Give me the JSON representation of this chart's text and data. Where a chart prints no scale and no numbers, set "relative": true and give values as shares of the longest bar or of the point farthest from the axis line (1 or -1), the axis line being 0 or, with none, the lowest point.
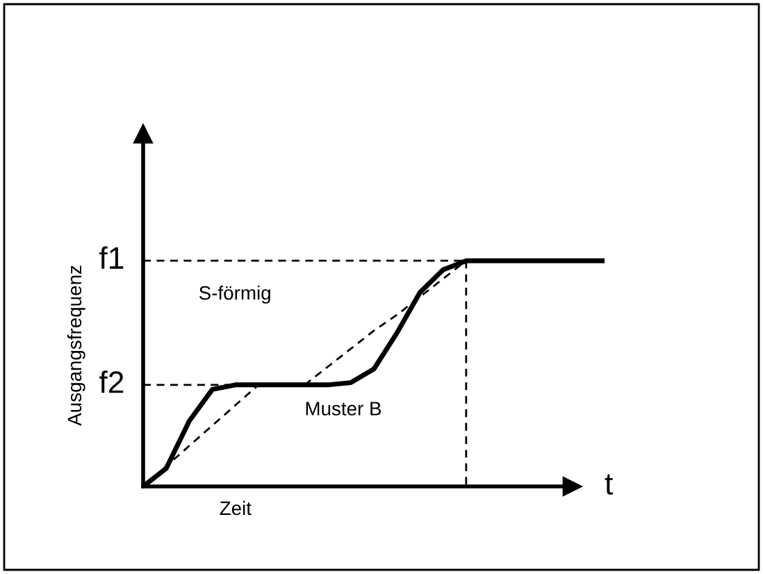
{
  "chart_data": {
    "type": "line",
    "relative": true,
    "xlabel": "Zeit",
    "ylabel": "Ausgangsfrequenz",
    "categories": [
      null,
      null,
      null,
      null,
      null,
      null,
      null,
      null,
      null,
      null,
      null,
      null,
      null,
      null,
      null,
      null,
      null,
      null,
      null,
      null,
      null
    ],
    "series": [
      {
        "color": "#000000",
        "values": [
          0,
          0.08,
          0.29,
          0.43,
          0.45,
          0.45,
          0.45,
          0.45,
          0.45,
          0.46,
          0.52,
          0.68,
          0.86,
          0.96,
          1,
          1,
          1,
          1,
          1,
          1,
          1
        ]
      },
      {
        "color": "#000000",
        "line_style": "dashed",
        "values": [
          0,
          0.09,
          0.18,
          0.27,
          0.36,
          0.45,
          null,
          null,
          null,
          null,
          null,
          null,
          null,
          null,
          null,
          null,
          null,
          null,
          null,
          null,
          null
        ]
      },
      {
        "color": "#000000",
        "line_style": "dashed",
        "values": [
          null,
          null,
          null,
          null,
          null,
          null,
          null,
          0.45,
          0.53,
          0.61,
          0.69,
          0.76,
          0.84,
          0.92,
          1,
          null,
          null,
          null,
          null,
          null,
          null
        ]
      }
    ],
    "ref_lines": [
      {
        "axis": "y",
        "value": 1,
        "label": "f1",
        "line_style": "dashed",
        "color": "#000000"
      },
      {
        "axis": "y",
        "value": 0.45,
        "label": "f2",
        "line_style": "dashed",
        "color": "#000000"
      }
    ],
    "annotations": [
      "S-förmig",
      "Muster B",
      "t"
    ]
  }
}
